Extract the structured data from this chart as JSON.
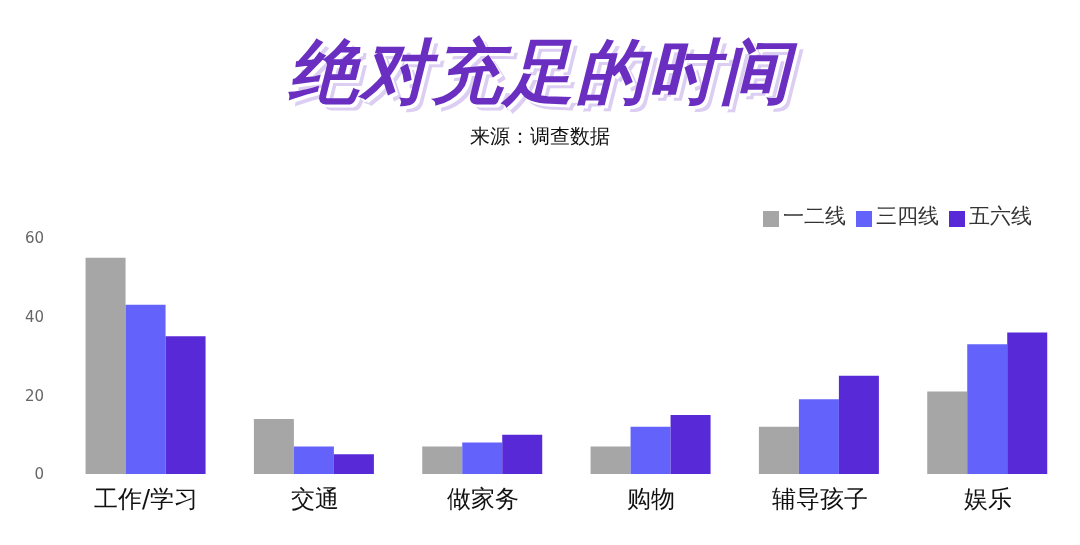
{
  "chart_data": {
    "type": "bar",
    "title": "绝对充足的时间",
    "subtitle": "来源：调查数据",
    "categories": [
      "工作/学习",
      "交通",
      "做家务",
      "购物",
      "辅导孩子",
      "娱乐"
    ],
    "series": [
      {
        "name": "一二线",
        "color": "#a6a6a6",
        "values": [
          55,
          14,
          7,
          7,
          12,
          21
        ]
      },
      {
        "name": "三四线",
        "color": "#6363fb",
        "values": [
          43,
          7,
          8,
          12,
          19,
          33
        ]
      },
      {
        "name": "五六线",
        "color": "#5829d6",
        "values": [
          35,
          5,
          10,
          15,
          25,
          36
        ]
      }
    ],
    "ylim": [
      0,
      60
    ],
    "yticks": [
      0,
      20,
      40,
      60
    ],
    "legend": "top right"
  }
}
